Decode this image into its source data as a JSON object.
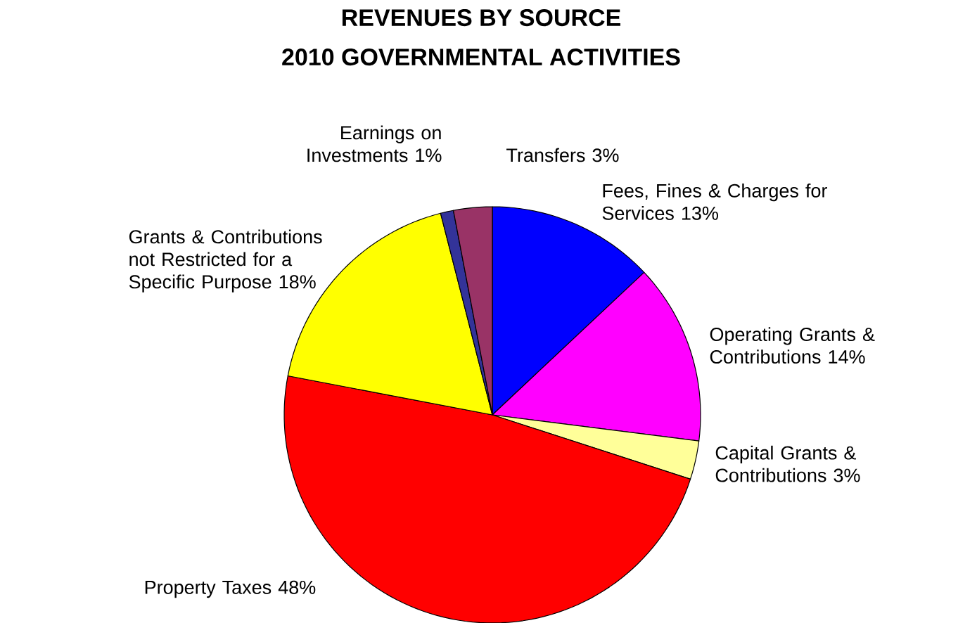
{
  "chart_data": {
    "type": "pie",
    "title": "REVENUES BY SOURCE",
    "subtitle": "2010 GOVERNMENTAL ACTIVITIES",
    "categories": [
      "Fees, Fines & Charges for Services",
      "Operating Grants & Contributions",
      "Capital Grants & Contributions",
      "Property Taxes",
      "Grants & Contributions not Restricted for a Specific Purpose",
      "Earnings on Investments",
      "Transfers"
    ],
    "values": [
      13,
      14,
      3,
      48,
      18,
      1,
      3
    ],
    "value_labels": [
      "13%",
      "14%",
      "3%",
      "48%",
      "18%",
      "1%",
      "3%"
    ],
    "colors": [
      "#0000ff",
      "#ff00ff",
      "#ffff99",
      "#ff0000",
      "#ffff00",
      "#333399",
      "#993366"
    ]
  }
}
